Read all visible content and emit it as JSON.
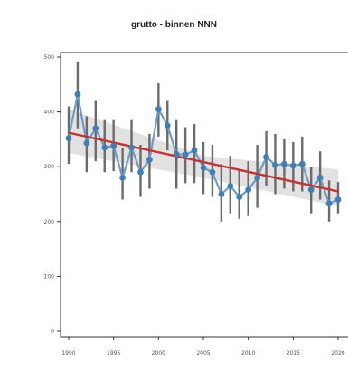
{
  "chart_data": {
    "type": "line",
    "title": "grutto - binnen NNN",
    "xlabel": "",
    "ylabel": "",
    "xlim": [
      1988.5,
      2021
    ],
    "ylim": [
      0,
      500
    ],
    "x_ticks": [
      1990,
      1995,
      2000,
      2005,
      2010,
      2015,
      2020
    ],
    "y_ticks": [
      0,
      100,
      200,
      300,
      400,
      500
    ],
    "grid": false,
    "colors": {
      "points": "#3e7fb8",
      "line": "#6a9dc8",
      "error_bars": "#6b6b6b",
      "trend": "#c8322d",
      "band": "#e2e2e2"
    },
    "series": [
      {
        "x": [
          1990,
          1991,
          1992,
          1993,
          1994,
          1995,
          1996,
          1997,
          1998,
          1999,
          2000,
          2001,
          2002,
          2003,
          2004,
          2005,
          2006,
          2007,
          2008,
          2009,
          2010,
          2011,
          2012,
          2013,
          2014,
          2015,
          2016,
          2017,
          2018,
          2019,
          2020
        ],
        "y": [
          352,
          432,
          343,
          370,
          335,
          338,
          280,
          335,
          290,
          313,
          405,
          375,
          323,
          322,
          330,
          298,
          290,
          250,
          265,
          245,
          258,
          280,
          318,
          303,
          305,
          302,
          305,
          258,
          280,
          233,
          240
        ],
        "lower": [
          305,
          370,
          290,
          310,
          290,
          292,
          240,
          290,
          245,
          260,
          355,
          330,
          260,
          270,
          270,
          250,
          245,
          200,
          215,
          205,
          210,
          225,
          265,
          250,
          260,
          255,
          255,
          215,
          240,
          200,
          215
        ],
        "upper": [
          410,
          492,
          392,
          420,
          385,
          385,
          335,
          385,
          340,
          360,
          452,
          420,
          385,
          372,
          378,
          345,
          340,
          305,
          320,
          295,
          310,
          340,
          365,
          360,
          350,
          345,
          355,
          300,
          328,
          275,
          272
        ]
      }
    ],
    "trend": {
      "x": [
        1990,
        2020
      ],
      "y": [
        362,
        255
      ]
    },
    "band": {
      "x": [
        1990,
        2005,
        2020
      ],
      "lower": [
        325,
        280,
        228
      ],
      "upper": [
        405,
        320,
        295
      ]
    }
  }
}
